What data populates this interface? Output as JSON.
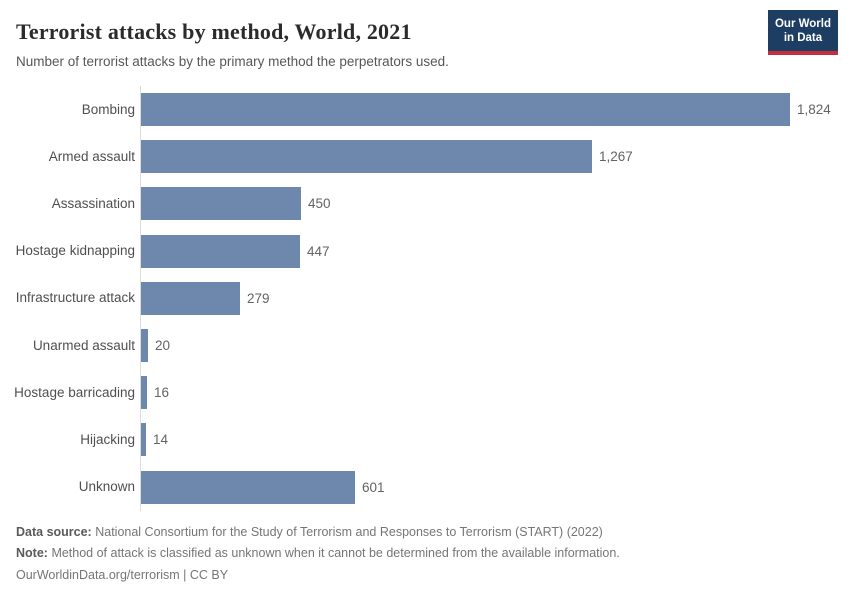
{
  "header": {
    "title": "Terrorist attacks by method, World, 2021",
    "subtitle": "Number of terrorist attacks by the primary method the perpetrators used.",
    "logo": {
      "line1": "Our World",
      "line2": "in Data",
      "bg_color": "#1d3d63",
      "accent_color": "#c0313c"
    }
  },
  "chart_data": {
    "type": "bar",
    "orientation": "horizontal",
    "title": "Terrorist attacks by method, World, 2021",
    "categories": [
      "Bombing",
      "Armed assault",
      "Assassination",
      "Hostage kidnapping",
      "Infrastructure attack",
      "Unarmed assault",
      "Hostage barricading",
      "Hijacking",
      "Unknown"
    ],
    "values": [
      1824,
      1267,
      450,
      447,
      279,
      20,
      16,
      14,
      601
    ],
    "value_labels": [
      "1,824",
      "1,267",
      "450",
      "447",
      "279",
      "20",
      "16",
      "14",
      "601"
    ],
    "xlabel": "",
    "ylabel": "",
    "xlim": [
      0,
      1824
    ],
    "grid": false,
    "legend": "none",
    "bar_color": "#6e87ad",
    "axis_line_color": "#dcdcdc"
  },
  "footer": {
    "data_source_label": "Data source:",
    "data_source_text": "National Consortium for the Study of Terrorism and Responses to Terrorism (START) (2022)",
    "note_label": "Note:",
    "note_text": "Method of attack is classified as unknown when it cannot be determined from the available information.",
    "link": "OurWorldinData.org/terrorism",
    "separator": " | ",
    "license": "CC BY"
  }
}
